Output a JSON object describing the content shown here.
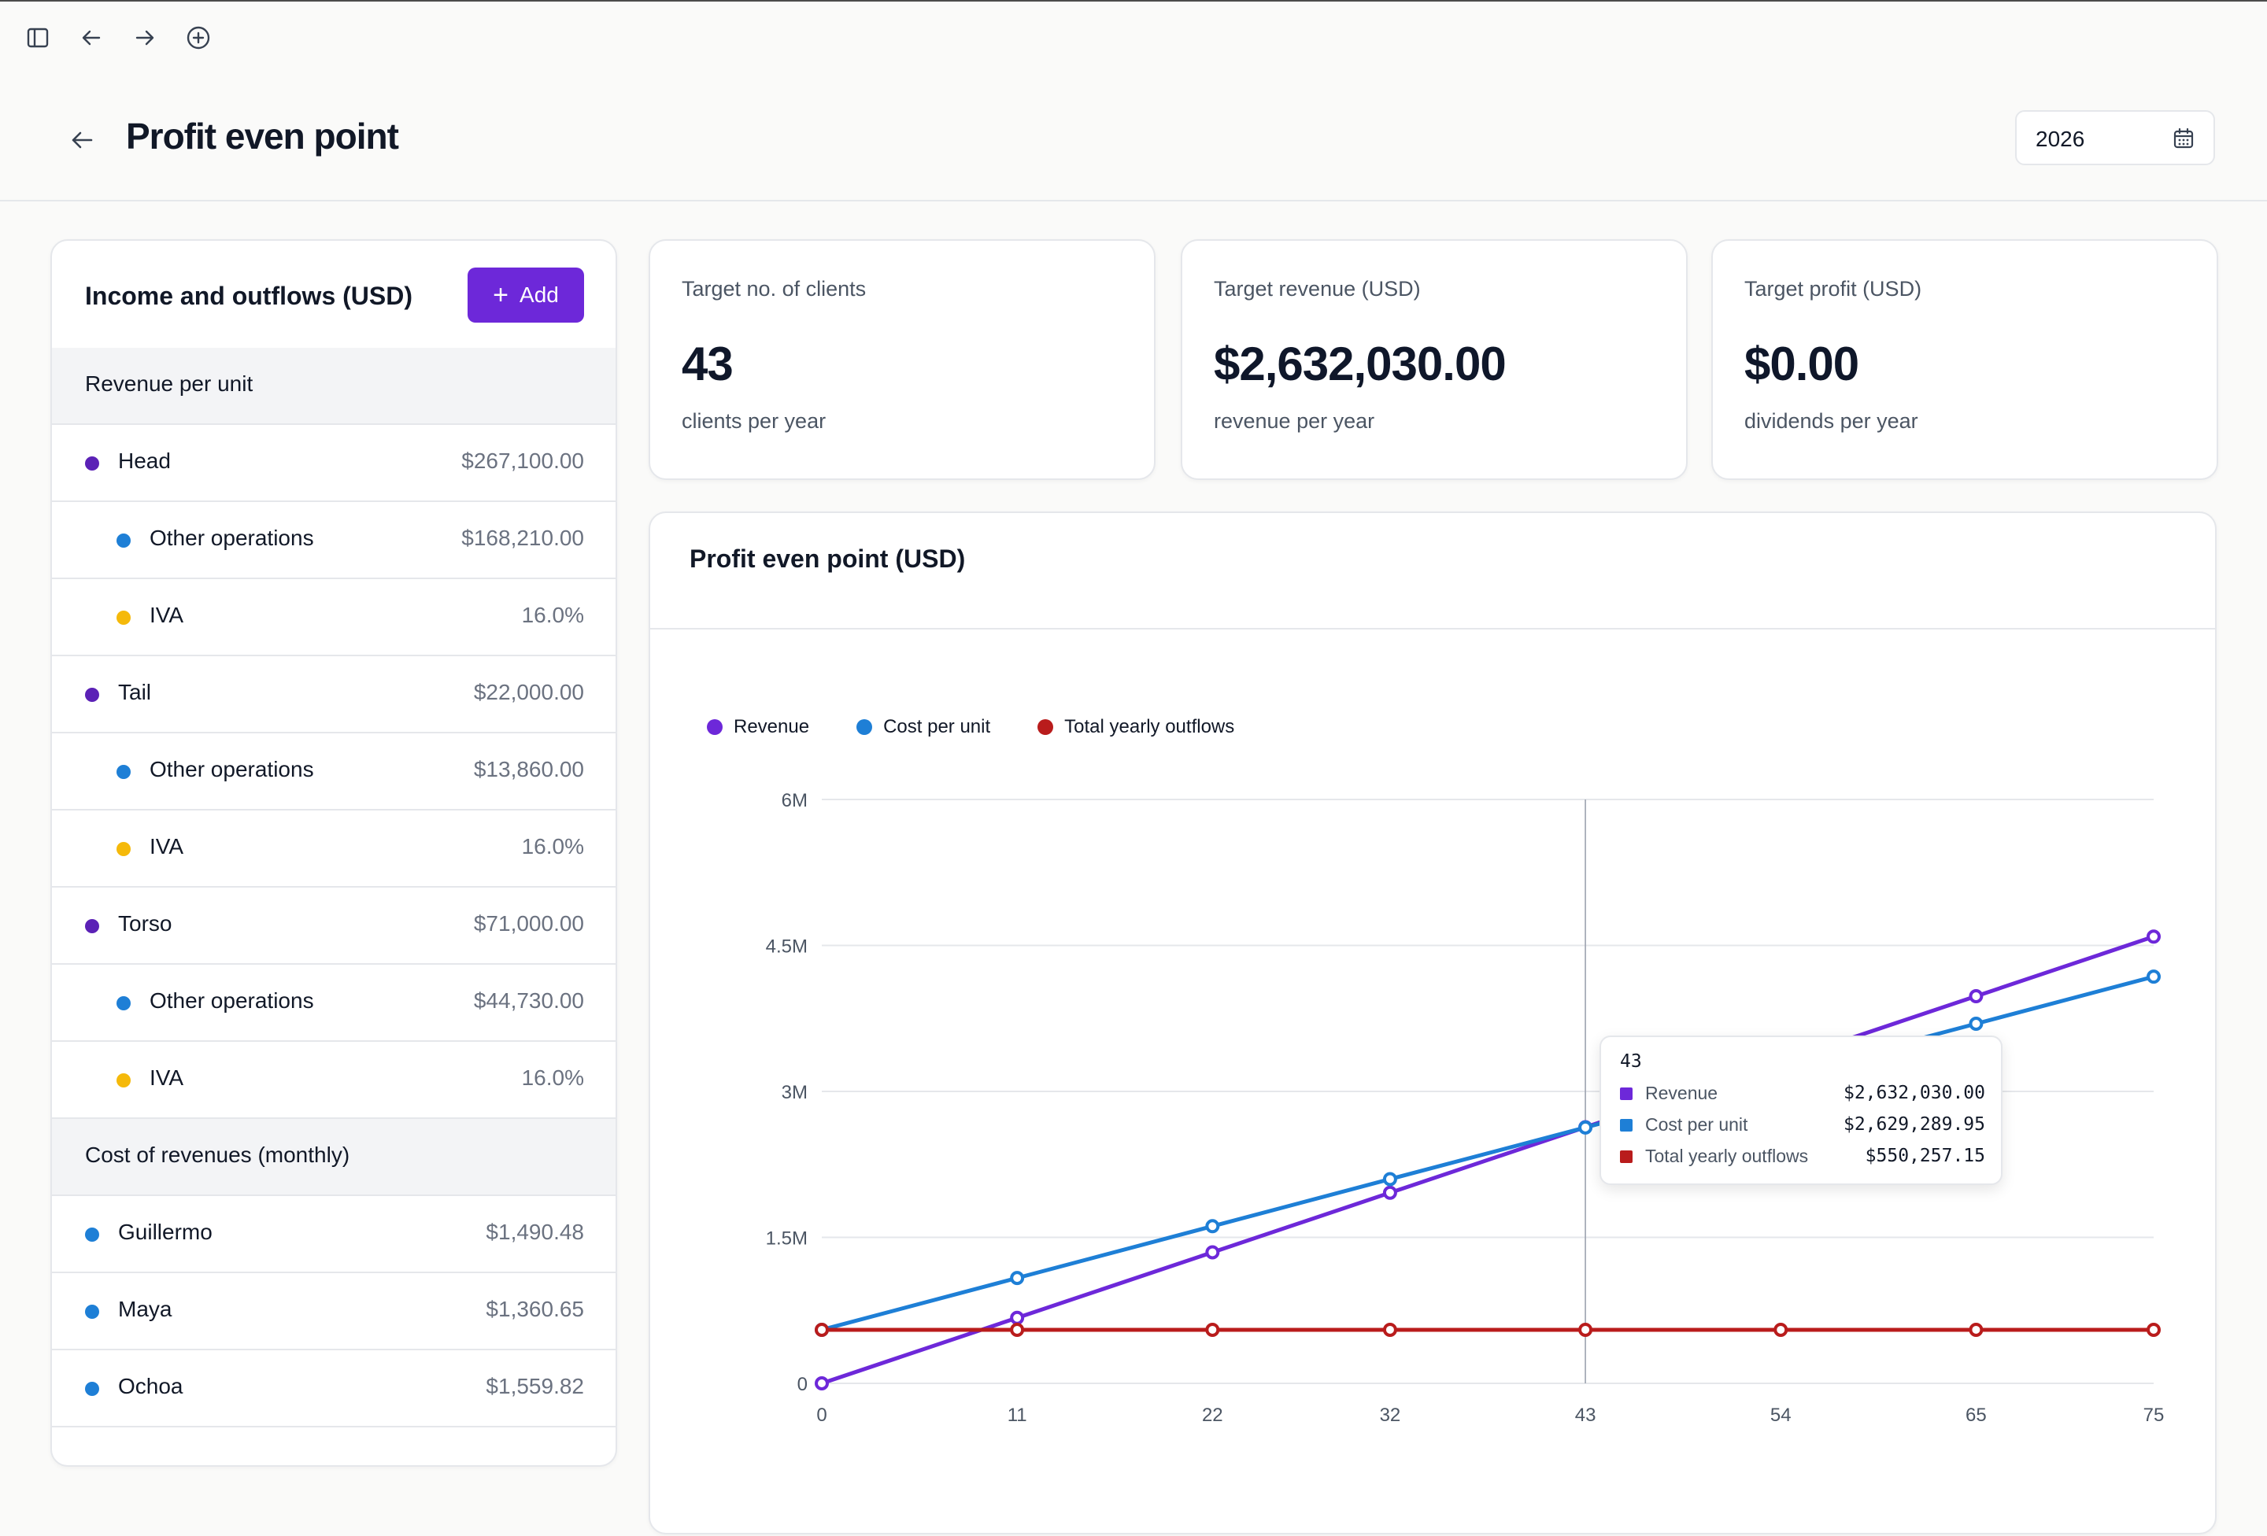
{
  "toolbar": {
    "icons": [
      "sidebar-toggle-icon",
      "arrow-left-icon",
      "arrow-right-icon",
      "plus-circle-icon"
    ]
  },
  "header": {
    "title": "Profit even point",
    "year": "2026"
  },
  "income_panel": {
    "title": "Income and outflows (USD)",
    "add_label": "Add",
    "rows": [
      {
        "type": "section",
        "label": "Revenue per unit"
      },
      {
        "type": "item",
        "level": 0,
        "label": "Head",
        "value": "$267,100.00",
        "dot": "#5b21b6"
      },
      {
        "type": "item",
        "level": 1,
        "label": "Other operations",
        "value": "$168,210.00",
        "dot": "#1e7fd6"
      },
      {
        "type": "item",
        "level": 1,
        "label": "IVA",
        "value": "16.0%",
        "dot": "#f5b90a"
      },
      {
        "type": "item",
        "level": 0,
        "label": "Tail",
        "value": "$22,000.00",
        "dot": "#5b21b6"
      },
      {
        "type": "item",
        "level": 1,
        "label": "Other operations",
        "value": "$13,860.00",
        "dot": "#1e7fd6"
      },
      {
        "type": "item",
        "level": 1,
        "label": "IVA",
        "value": "16.0%",
        "dot": "#f5b90a"
      },
      {
        "type": "item",
        "level": 0,
        "label": "Torso",
        "value": "$71,000.00",
        "dot": "#5b21b6"
      },
      {
        "type": "item",
        "level": 1,
        "label": "Other operations",
        "value": "$44,730.00",
        "dot": "#1e7fd6"
      },
      {
        "type": "item",
        "level": 1,
        "label": "IVA",
        "value": "16.0%",
        "dot": "#f5b90a"
      },
      {
        "type": "section",
        "label": "Cost of revenues (monthly)"
      },
      {
        "type": "item",
        "level": 0,
        "label": "Guillermo",
        "value": "$1,490.48",
        "dot": "#1e7fd6"
      },
      {
        "type": "item",
        "level": 0,
        "label": "Maya",
        "value": "$1,360.65",
        "dot": "#1e7fd6"
      },
      {
        "type": "item",
        "level": 0,
        "label": "Ochoa",
        "value": "$1,559.82",
        "dot": "#1e7fd6"
      }
    ]
  },
  "stats": [
    {
      "label": "Target no. of clients",
      "value": "43",
      "sub": "clients per year"
    },
    {
      "label": "Target revenue (USD)",
      "value": "$2,632,030.00",
      "sub": "revenue per year"
    },
    {
      "label": "Target profit (USD)",
      "value": "$0.00",
      "sub": "dividends per year"
    }
  ],
  "chart_data": {
    "type": "line",
    "title": "Profit even point (USD)",
    "x": [
      0,
      11,
      22,
      32,
      43,
      54,
      65,
      75
    ],
    "yticks": [
      0,
      1500000,
      3000000,
      4500000,
      6000000
    ],
    "ytick_labels": [
      "0",
      "1.5M",
      "3M",
      "4.5M",
      "6M"
    ],
    "ylim": [
      0,
      6000000
    ],
    "legend_position": "top-left",
    "grid": true,
    "series": [
      {
        "name": "Revenue",
        "color": "#6d28d9",
        "values": [
          0,
          673310,
          1346620,
          1958720,
          2632030,
          3305340,
          3978650,
          4590750
        ]
      },
      {
        "name": "Cost per unit",
        "color": "#1e7fd6",
        "values": [
          550257,
          1082530,
          1614800,
          2098690,
          2629290,
          3163150,
          3695420,
          4179310
        ]
      },
      {
        "name": "Total yearly outflows",
        "color": "#b91c1c",
        "values": [
          550257,
          550257,
          550257,
          550257,
          550257,
          550257,
          550257,
          550257
        ]
      }
    ],
    "tooltip": {
      "x": "43",
      "rows": [
        {
          "label": "Revenue",
          "value": "$2,632,030.00",
          "color": "#6d28d9"
        },
        {
          "label": "Cost per unit",
          "value": "$2,629,289.95",
          "color": "#1e7fd6"
        },
        {
          "label": "Total yearly outflows",
          "value": "$550,257.15",
          "color": "#b91c1c"
        }
      ]
    }
  }
}
